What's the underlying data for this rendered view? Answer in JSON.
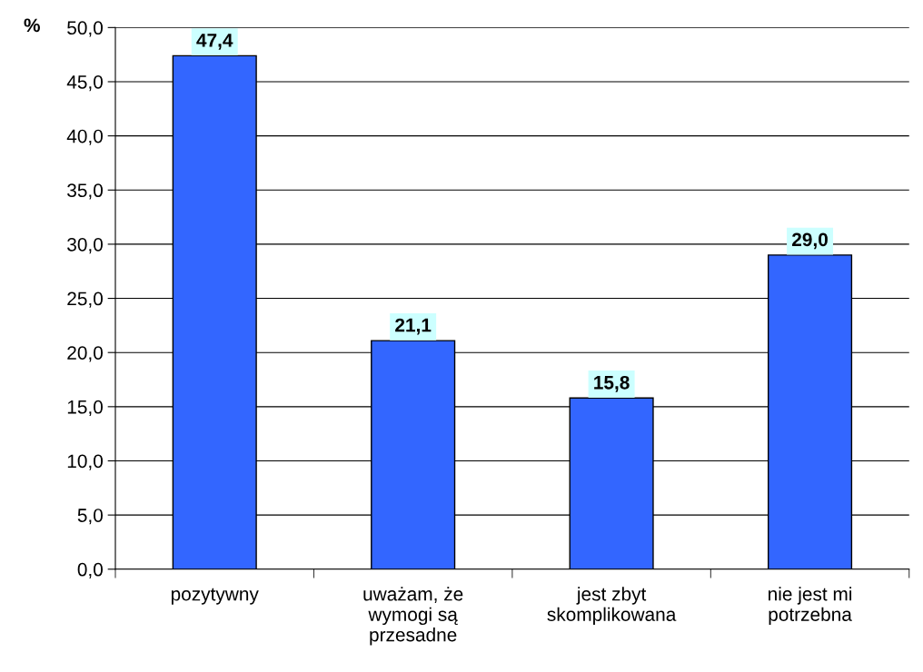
{
  "chart_data": {
    "type": "bar",
    "ylabel": "%",
    "categories": [
      "pozytywny",
      "uważam, że\nwymogi są\nprzesadne",
      "jest zbyt\nskomplikowana",
      "nie jest mi\npotrzebna"
    ],
    "values": [
      47.4,
      21.1,
      15.8,
      29.0
    ],
    "value_labels": [
      "47,4",
      "21,1",
      "15,8",
      "29,0"
    ],
    "color": "#3366ff",
    "ylim": [
      0,
      50
    ],
    "yticks": [
      {
        "value": 0,
        "label": "0,0"
      },
      {
        "value": 5,
        "label": "5,0"
      },
      {
        "value": 10,
        "label": "10,0"
      },
      {
        "value": 15,
        "label": "15,0"
      },
      {
        "value": 20,
        "label": "20,0"
      },
      {
        "value": 25,
        "label": "25,0"
      },
      {
        "value": 30,
        "label": "30,0"
      },
      {
        "value": 35,
        "label": "35,0"
      },
      {
        "value": 40,
        "label": "40,0"
      },
      {
        "value": 45,
        "label": "45,0"
      },
      {
        "value": 50,
        "label": "50,0"
      }
    ],
    "grid": "y",
    "legend": false
  }
}
